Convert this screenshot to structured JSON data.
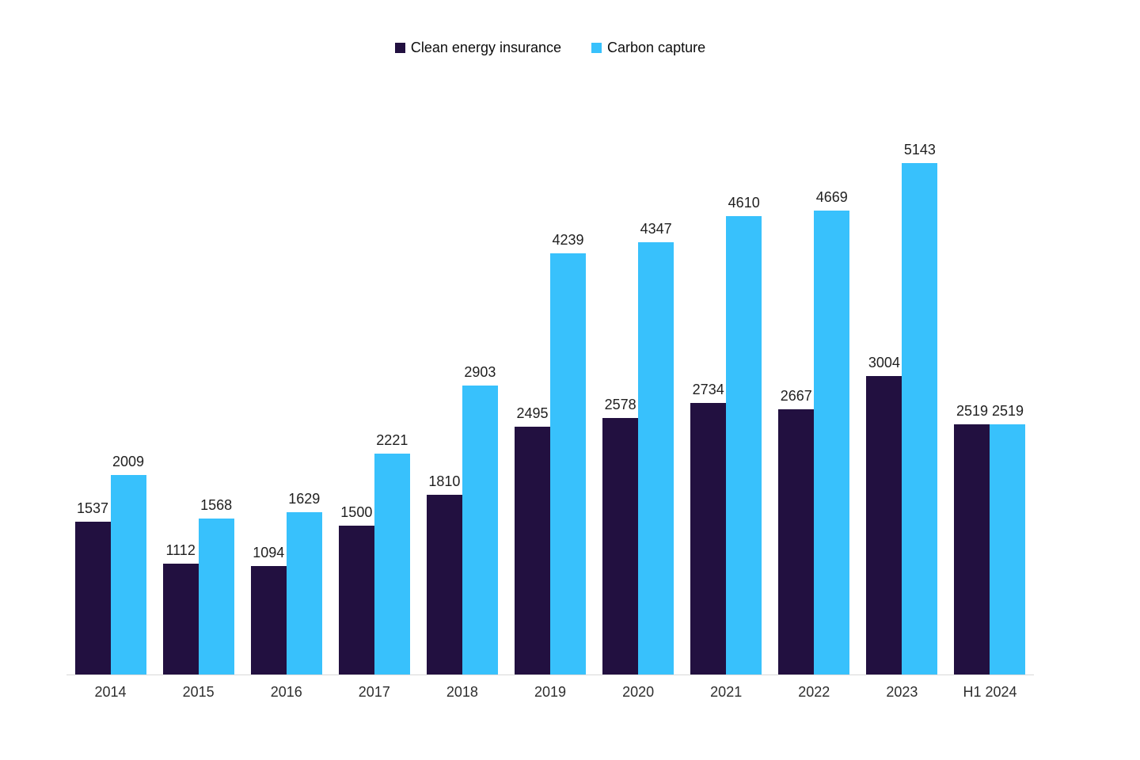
{
  "chart_data": {
    "type": "bar",
    "title": "",
    "xlabel": "",
    "ylabel": "",
    "categories": [
      "2014",
      "2015",
      "2016",
      "2017",
      "2018",
      "2019",
      "2020",
      "2021",
      "2022",
      "2023",
      "H1 2024"
    ],
    "series": [
      {
        "name": "Clean energy insurance",
        "color": "#221040",
        "values": [
          1537,
          1112,
          1094,
          1500,
          1810,
          2495,
          2578,
          2734,
          2667,
          3004,
          2519
        ]
      },
      {
        "name": "Carbon capture",
        "color": "#38C1FC",
        "values": [
          2009,
          1568,
          1629,
          2221,
          2903,
          4239,
          4347,
          4610,
          4669,
          5143,
          2519
        ]
      }
    ],
    "ylim": [
      0,
      5143
    ],
    "grid": false,
    "data_labels": true,
    "legend_position": "top-center",
    "axis_line_color": "#D9D9D9",
    "value_label_color": "#1F1F1F",
    "category_label_color": "#2E2E2E",
    "background": "#FFFFFF"
  }
}
